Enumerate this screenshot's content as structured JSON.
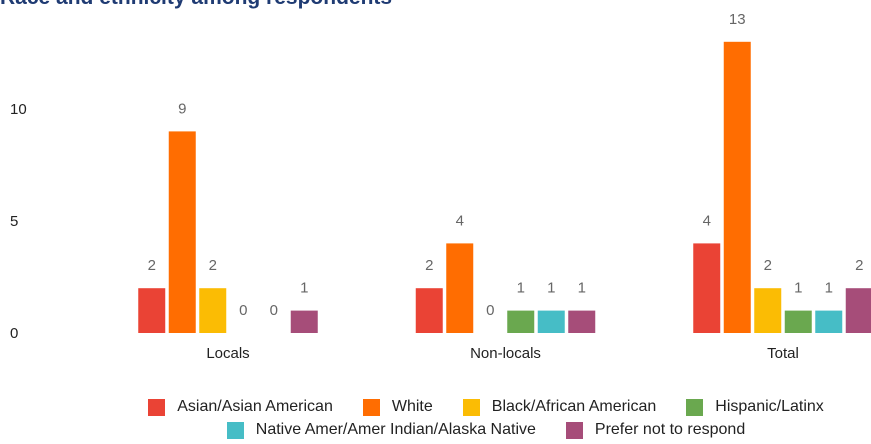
{
  "chart_data": {
    "type": "bar",
    "title": "Race and ethnicity among respondents",
    "categories": [
      "Locals",
      "Non-locals",
      "Total"
    ],
    "series": [
      {
        "name": "Asian/Asian American",
        "color": "#ea4335",
        "values": [
          2,
          2,
          4
        ]
      },
      {
        "name": "White",
        "color": "#ff6d01",
        "values": [
          9,
          4,
          13
        ]
      },
      {
        "name": "Black/African American",
        "color": "#fbbc04",
        "values": [
          2,
          0,
          2
        ]
      },
      {
        "name": "Hispanic/Latinx",
        "color": "#6aa84f",
        "values": [
          0,
          1,
          1
        ]
      },
      {
        "name": "Native Amer/Amer Indian/Alaska Native",
        "color": "#46bdc6",
        "values": [
          0,
          1,
          1
        ]
      },
      {
        "name": "Prefer not to respond",
        "color": "#a64d79",
        "values": [
          1,
          1,
          2
        ]
      }
    ],
    "ylim": [
      0,
      14
    ],
    "yticks": [
      0,
      5,
      10
    ],
    "grid": false,
    "legend": "bottom"
  }
}
